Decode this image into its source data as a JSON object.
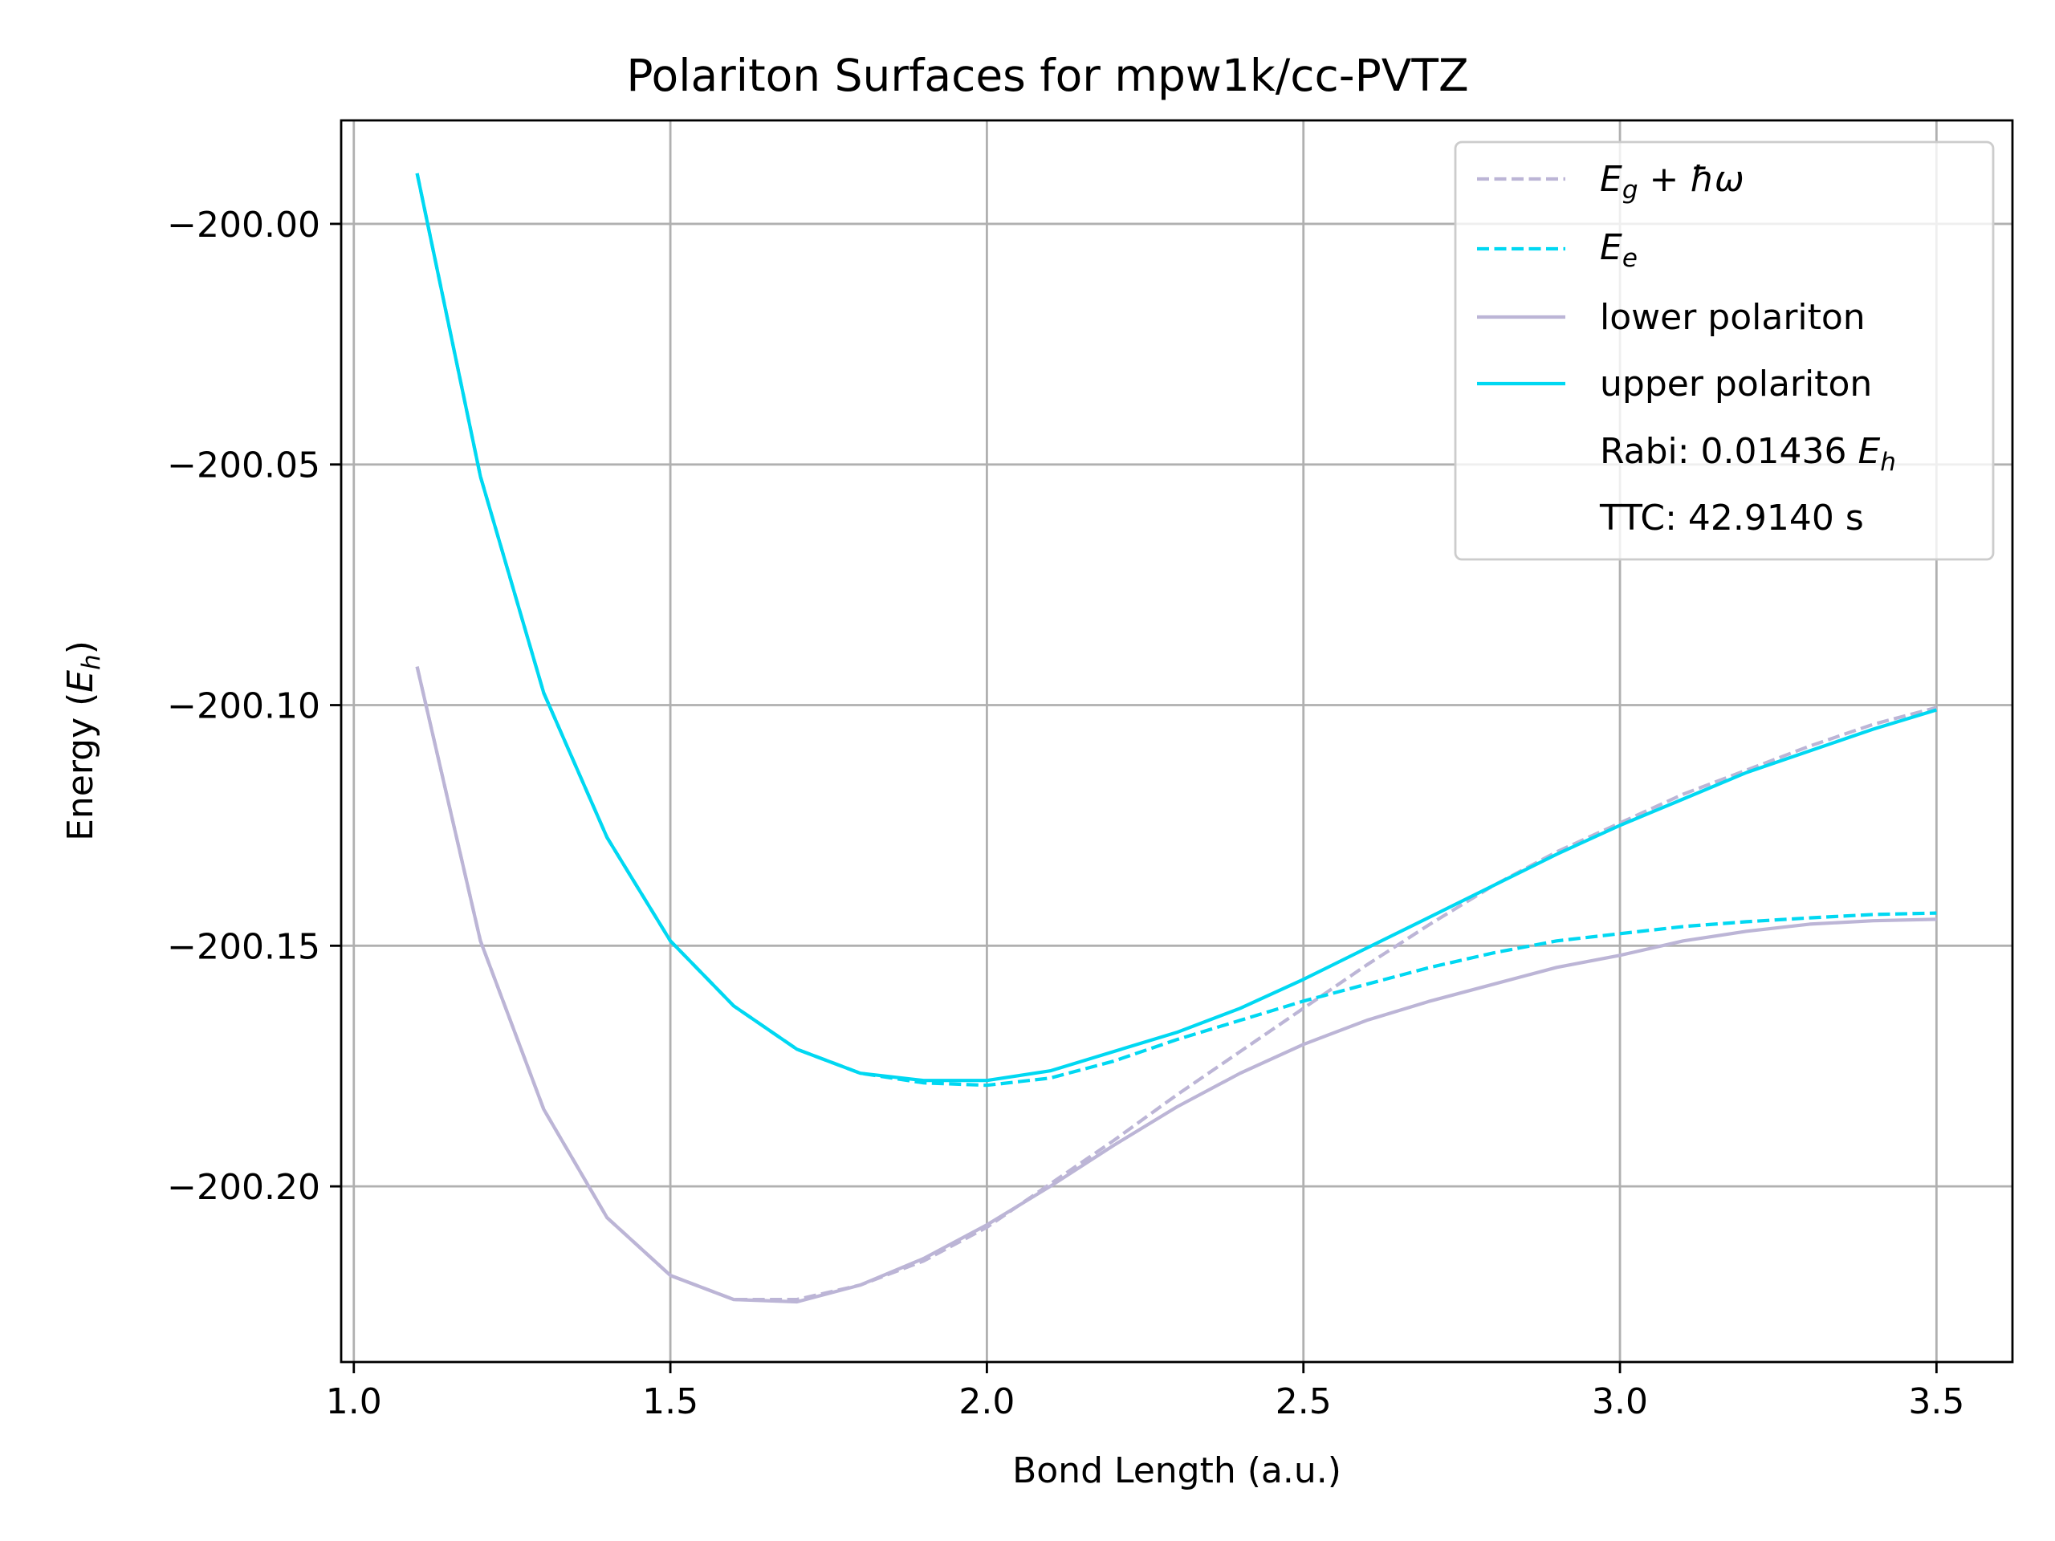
{
  "chart_data": {
    "type": "line",
    "title": "Polariton Surfaces for mpw1k/cc-PVTZ",
    "xlabel": "Bond Length (a.u.)",
    "ylabel": "Energy (E_h)",
    "ylabel_main": "Energy (",
    "ylabel_sym": "E",
    "ylabel_sub": "h",
    "ylabel_close": ")",
    "xlim": [
      0.98,
      3.62
    ],
    "ylim": [
      -200.2365,
      -199.9785
    ],
    "xticks": [
      1.0,
      1.5,
      2.0,
      2.5,
      3.0,
      3.5
    ],
    "xtick_labels": [
      "1.0",
      "1.5",
      "2.0",
      "2.5",
      "3.0",
      "3.5"
    ],
    "yticks": [
      -200.0,
      -200.05,
      -200.1,
      -200.15,
      -200.2
    ],
    "ytick_labels": [
      "−200.00",
      "−200.05",
      "−200.10",
      "−200.15",
      "−200.20"
    ],
    "grid": true,
    "legend_position": "top-right",
    "series": [
      {
        "key": "eg",
        "style": "dashed",
        "color": "#bcb5d6",
        "x": [
          1.1,
          1.2,
          1.3,
          1.4,
          1.5,
          1.6,
          1.7,
          1.8,
          1.9,
          2.0,
          2.1,
          2.2,
          2.3,
          2.4,
          2.5,
          2.6,
          2.7,
          2.8,
          2.9,
          3.0,
          3.1,
          3.2,
          3.3,
          3.4,
          3.5
        ],
        "y": [
          -200.092,
          -200.149,
          -200.184,
          -200.2065,
          -200.2185,
          -200.2235,
          -200.2235,
          -200.2205,
          -200.2155,
          -200.2085,
          -200.1995,
          -200.1905,
          -200.181,
          -200.172,
          -200.163,
          -200.154,
          -200.1455,
          -200.1375,
          -200.1305,
          -200.1245,
          -200.1185,
          -200.1135,
          -200.1085,
          -200.104,
          -200.1005
        ]
      },
      {
        "key": "ee",
        "style": "dashed",
        "color": "#00d8f2",
        "x": [
          1.1,
          1.2,
          1.3,
          1.4,
          1.5,
          1.6,
          1.7,
          1.8,
          1.9,
          2.0,
          2.1,
          2.2,
          2.3,
          2.4,
          2.5,
          2.6,
          2.7,
          2.8,
          2.9,
          3.0,
          3.1,
          3.2,
          3.3,
          3.4,
          3.5
        ],
        "y": [
          -199.9895,
          -200.0525,
          -200.0975,
          -200.1275,
          -200.149,
          -200.1625,
          -200.1715,
          -200.1765,
          -200.1785,
          -200.179,
          -200.1775,
          -200.174,
          -200.1695,
          -200.1655,
          -200.1615,
          -200.158,
          -200.1545,
          -200.1515,
          -200.149,
          -200.1475,
          -200.146,
          -200.145,
          -200.1442,
          -200.1435,
          -200.1432
        ]
      },
      {
        "key": "lp",
        "style": "solid",
        "color": "#bcb5d6",
        "x": [
          1.1,
          1.2,
          1.3,
          1.4,
          1.5,
          1.6,
          1.7,
          1.8,
          1.9,
          2.0,
          2.1,
          2.2,
          2.3,
          2.4,
          2.5,
          2.6,
          2.7,
          2.8,
          2.9,
          3.0,
          3.1,
          3.2,
          3.3,
          3.4,
          3.5
        ],
        "y": [
          -200.092,
          -200.149,
          -200.184,
          -200.2065,
          -200.2185,
          -200.2235,
          -200.224,
          -200.2205,
          -200.215,
          -200.208,
          -200.2,
          -200.1915,
          -200.1835,
          -200.1765,
          -200.1705,
          -200.1655,
          -200.1615,
          -200.158,
          -200.1545,
          -200.152,
          -200.149,
          -200.147,
          -200.1455,
          -200.1448,
          -200.1445
        ]
      },
      {
        "key": "up",
        "style": "solid",
        "color": "#00d8f2",
        "x": [
          1.1,
          1.2,
          1.3,
          1.4,
          1.5,
          1.6,
          1.7,
          1.8,
          1.9,
          2.0,
          2.1,
          2.2,
          2.3,
          2.4,
          2.5,
          2.6,
          2.7,
          2.8,
          2.9,
          3.0,
          3.1,
          3.2,
          3.3,
          3.4,
          3.5
        ],
        "y": [
          -199.9895,
          -200.0525,
          -200.0975,
          -200.1275,
          -200.149,
          -200.1625,
          -200.1715,
          -200.1765,
          -200.178,
          -200.178,
          -200.176,
          -200.172,
          -200.168,
          -200.163,
          -200.157,
          -200.1505,
          -200.144,
          -200.1375,
          -200.131,
          -200.125,
          -200.1195,
          -200.114,
          -200.1095,
          -200.105,
          -200.101
        ]
      }
    ],
    "legend": {
      "eg_sym": "E",
      "eg_sub": "g",
      "eg_rest": " + ħω",
      "ee_sym": "E",
      "ee_sub": "e",
      "lp": "lower polariton",
      "up": "upper polariton",
      "rabi_text": "Rabi: 0.01436 ",
      "rabi_sym": "E",
      "rabi_sub": "h",
      "ttc": "TTC: 42.9140 s"
    }
  }
}
